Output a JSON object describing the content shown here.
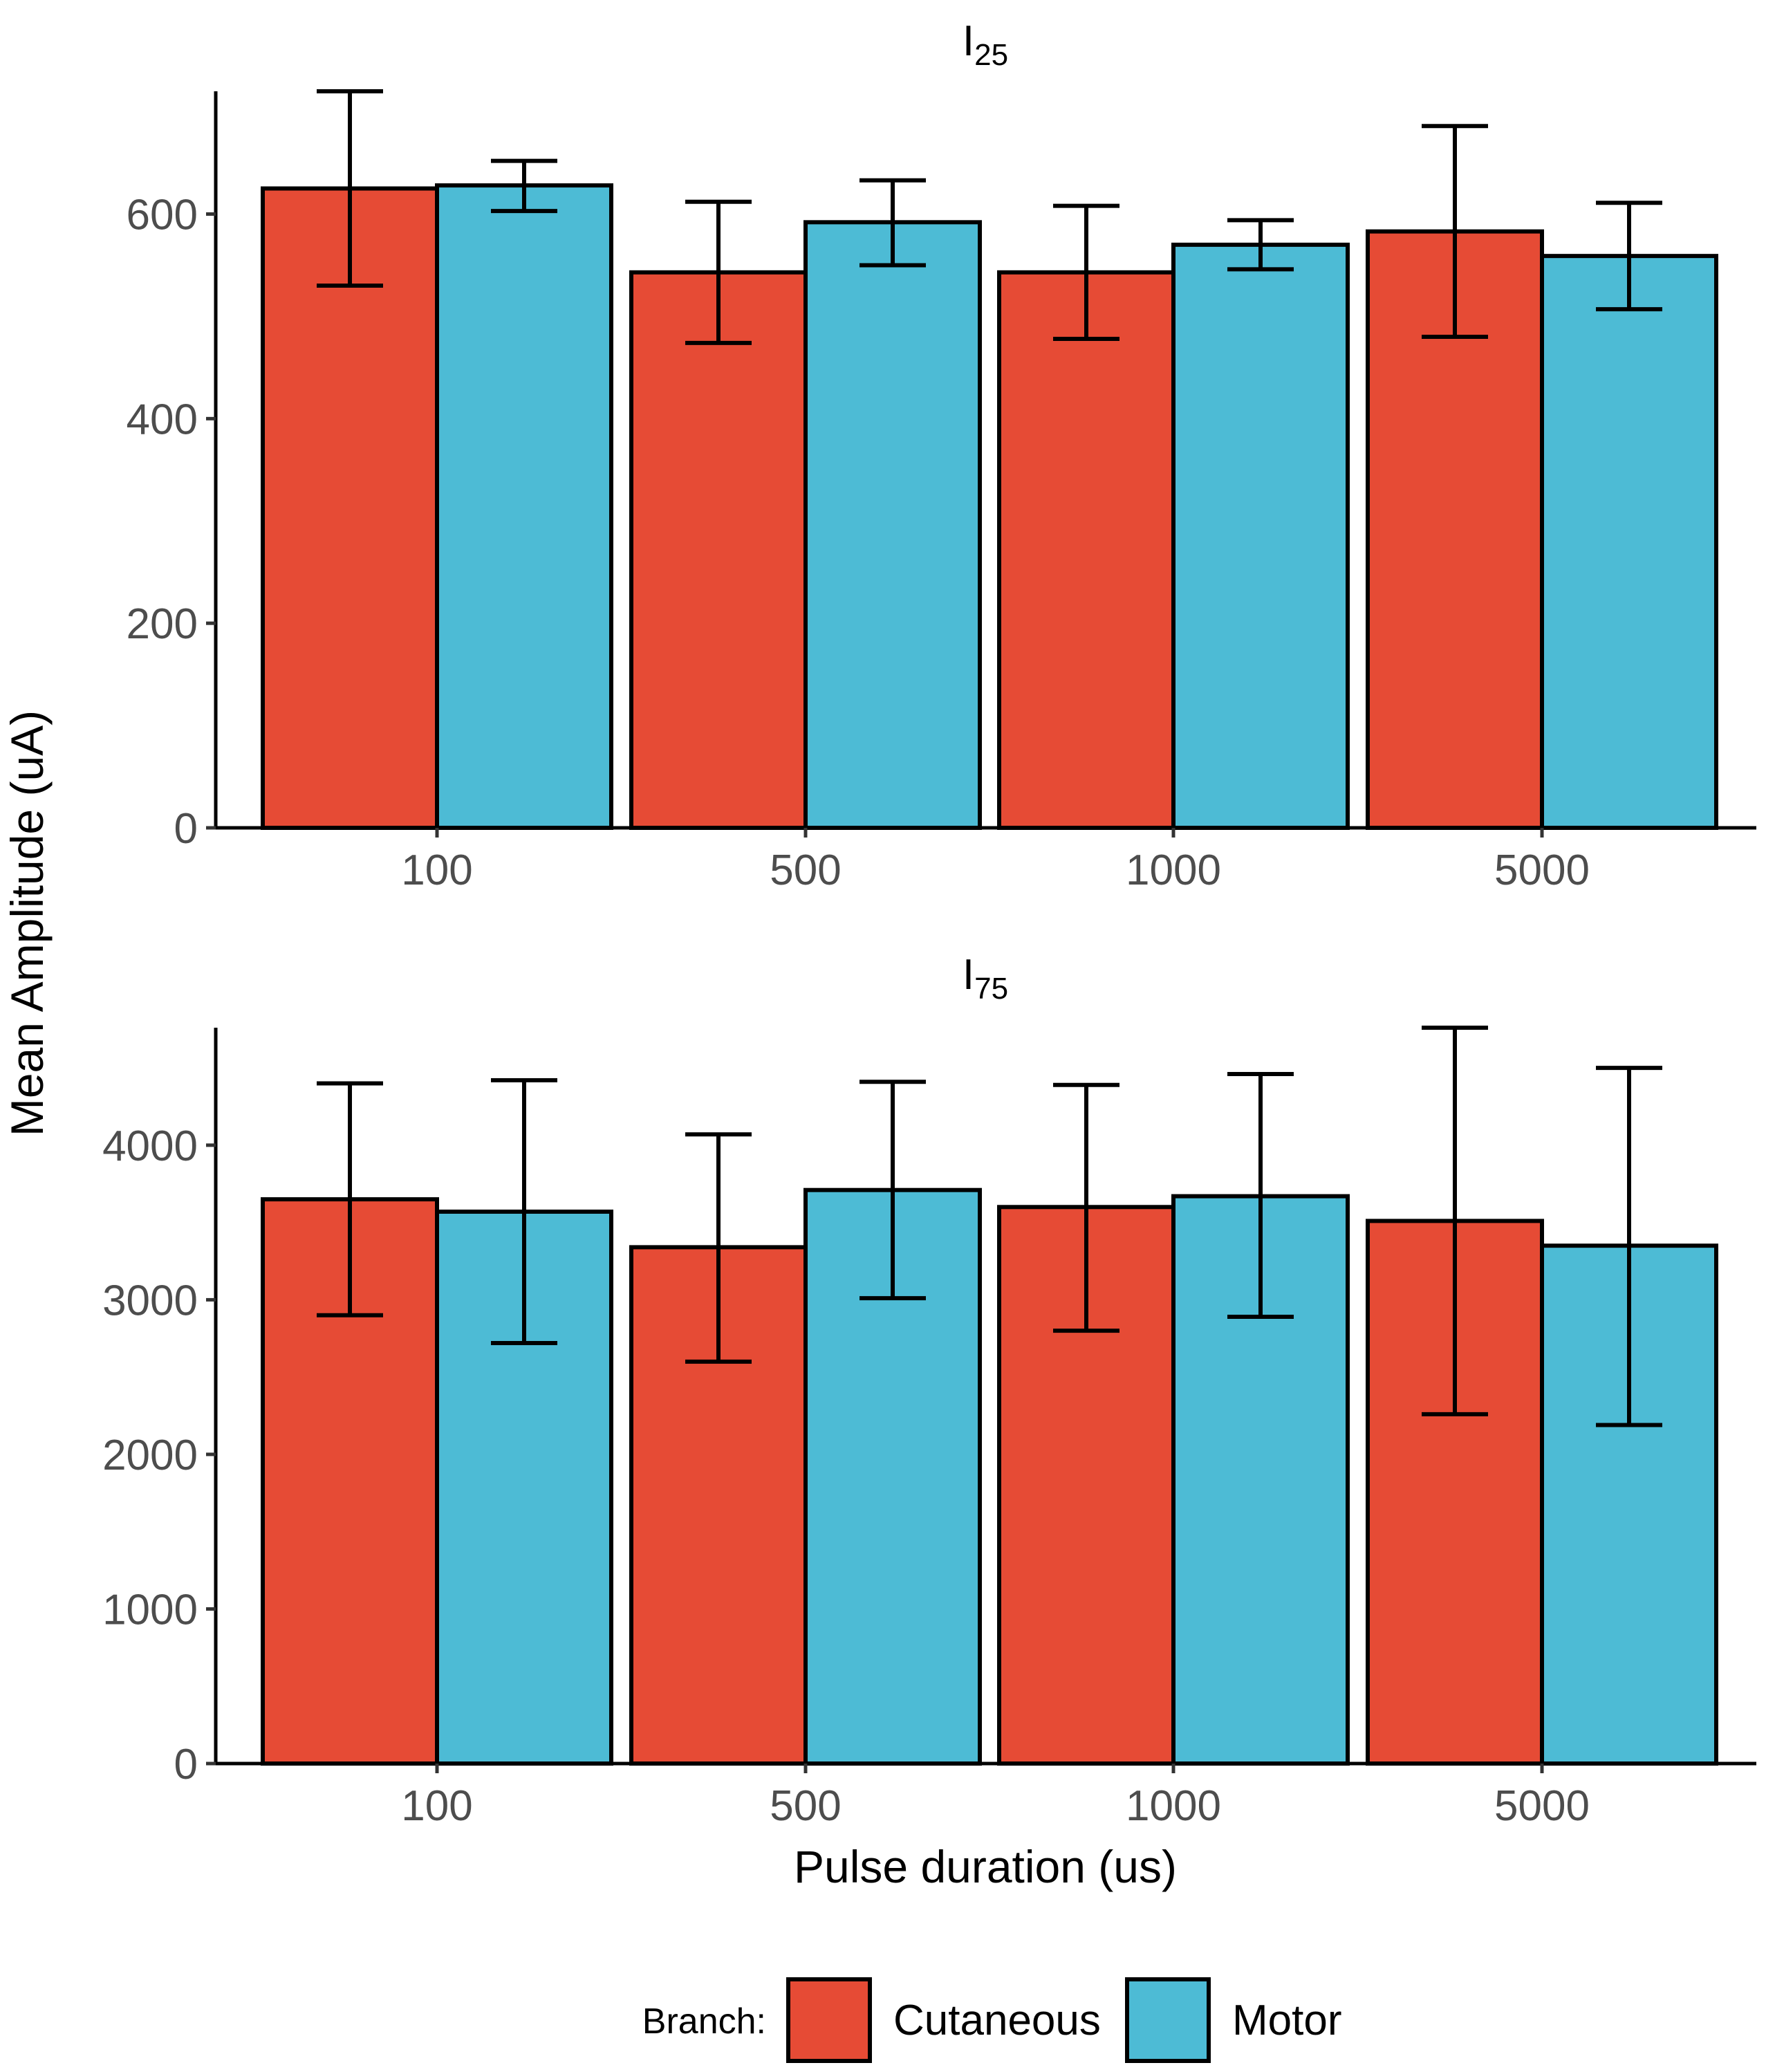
{
  "chart_data": [
    {
      "type": "bar",
      "title_main": "I",
      "title_sub": "25",
      "categories": [
        "100",
        "500",
        "1000",
        "5000"
      ],
      "series": [
        {
          "name": "Cutaneous",
          "color": "#E64B35",
          "values": [
            625,
            543,
            543,
            583
          ],
          "error_low": [
            530,
            474,
            478,
            480
          ],
          "error_high": [
            720,
            612,
            608,
            686
          ]
        },
        {
          "name": "Motor",
          "color": "#4DBBD5",
          "values": [
            628,
            592,
            570,
            559
          ],
          "error_low": [
            603,
            550,
            546,
            507
          ],
          "error_high": [
            652,
            633,
            594,
            611
          ]
        }
      ],
      "ylim": [
        0,
        720
      ],
      "yticks": [
        0,
        200,
        400,
        600
      ],
      "ytick_labels": [
        "0",
        "200",
        "400",
        "600"
      ]
    },
    {
      "type": "bar",
      "title_main": "I",
      "title_sub": "75",
      "categories": [
        "100",
        "500",
        "1000",
        "5000"
      ],
      "series": [
        {
          "name": "Cutaneous",
          "color": "#E64B35",
          "values": [
            3650,
            3340,
            3600,
            3510
          ],
          "error_low": [
            2900,
            2600,
            2800,
            2260
          ],
          "error_high": [
            4400,
            4070,
            4390,
            4760
          ]
        },
        {
          "name": "Motor",
          "color": "#4DBBD5",
          "values": [
            3570,
            3710,
            3670,
            3350
          ],
          "error_low": [
            2720,
            3010,
            2890,
            2190
          ],
          "error_high": [
            4420,
            4410,
            4460,
            4500
          ]
        }
      ],
      "ylim": [
        0,
        4760
      ],
      "yticks": [
        0,
        1000,
        2000,
        3000,
        4000
      ],
      "ytick_labels": [
        "0",
        "1000",
        "2000",
        "3000",
        "4000"
      ]
    }
  ],
  "labels": {
    "ylabel": "Mean Amplitude (uA)",
    "xlabel": "Pulse duration (us)"
  },
  "legend": {
    "title": "Branch:",
    "items": [
      {
        "label": "Cutaneous",
        "color": "#E64B35"
      },
      {
        "label": "Motor",
        "color": "#4DBBD5"
      }
    ]
  }
}
